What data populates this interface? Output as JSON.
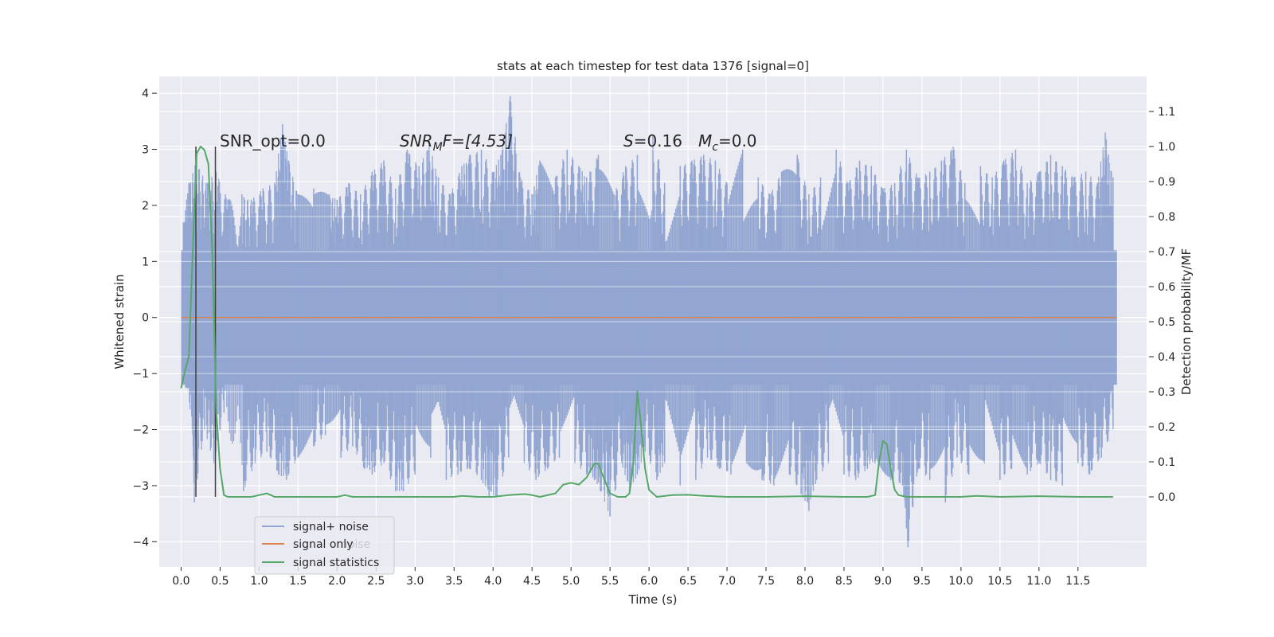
{
  "chart_data": {
    "type": "line",
    "title": "stats at each timestep for test data 1376 [signal=0]",
    "xlabel": "Time (s)",
    "ylabel": "Whitened strain",
    "y2label": "Detection probability/MF",
    "xlim": [
      -0.28,
      12.38
    ],
    "ylim": [
      -4.45,
      4.3
    ],
    "y2lim": [
      -0.2,
      1.2
    ],
    "x_ticks": [
      0.0,
      0.5,
      1.0,
      1.5,
      2.0,
      2.5,
      3.0,
      3.5,
      4.0,
      4.5,
      5.0,
      5.5,
      6.0,
      6.5,
      7.0,
      7.5,
      8.0,
      8.5,
      9.0,
      9.5,
      10.0,
      10.5,
      11.0,
      11.5
    ],
    "x_tick_labels": [
      "0.0",
      "0.5",
      "1.0",
      "1.5",
      "2.0",
      "2.5",
      "3.0",
      "3.5",
      "4.0",
      "4.5",
      "5.0",
      "5.5",
      "6.0",
      "6.5",
      "7.0",
      "7.5",
      "8.0",
      "8.5",
      "9.0",
      "9.5",
      "10.0",
      "10.5",
      "11.0",
      "11.5"
    ],
    "y_ticks": [
      -4,
      -3,
      -2,
      -1,
      0,
      1,
      2,
      3,
      4
    ],
    "y_tick_labels": [
      "−4",
      "−3",
      "−2",
      "−1",
      "0",
      "1",
      "2",
      "3",
      "4"
    ],
    "y2_ticks": [
      0.0,
      0.1,
      0.2,
      0.3,
      0.4,
      0.5,
      0.6,
      0.7,
      0.8,
      0.9,
      1.0,
      1.1
    ],
    "y2_tick_labels": [
      "0.0",
      "0.1",
      "0.2",
      "0.3",
      "0.4",
      "0.5",
      "0.6",
      "0.7",
      "0.8",
      "0.9",
      "1.0",
      "1.1"
    ],
    "grid": true,
    "legend_position": "lower-left",
    "noise": {
      "x_range": [
        0.0,
        12.0
      ],
      "envelope_upper": 1.2,
      "envelope_lower": -1.2,
      "spikes_up": [
        [
          0.03,
          1.7
        ],
        [
          0.1,
          2.4
        ],
        [
          0.2,
          2.8
        ],
        [
          0.32,
          2.4
        ],
        [
          0.45,
          2.6
        ],
        [
          0.6,
          2.1
        ],
        [
          0.78,
          2.2
        ],
        [
          0.9,
          2.1
        ],
        [
          1.05,
          2.3
        ],
        [
          1.2,
          2.4
        ],
        [
          1.3,
          3.45
        ],
        [
          1.38,
          2.8
        ],
        [
          1.5,
          2.2
        ],
        [
          1.7,
          2.3
        ],
        [
          1.9,
          2.2
        ],
        [
          2.0,
          2.1
        ],
        [
          2.15,
          2.4
        ],
        [
          2.3,
          2.2
        ],
        [
          2.45,
          2.6
        ],
        [
          2.6,
          2.8
        ],
        [
          2.75,
          2.3
        ],
        [
          2.9,
          3.0
        ],
        [
          3.05,
          2.7
        ],
        [
          3.18,
          3.1
        ],
        [
          3.3,
          2.5
        ],
        [
          3.45,
          2.2
        ],
        [
          3.6,
          2.7
        ],
        [
          3.7,
          2.9
        ],
        [
          3.85,
          3.0
        ],
        [
          4.0,
          2.6
        ],
        [
          4.1,
          2.9
        ],
        [
          4.22,
          3.95
        ],
        [
          4.35,
          2.5
        ],
        [
          4.5,
          2.2
        ],
        [
          4.6,
          2.8
        ],
        [
          4.8,
          2.5
        ],
        [
          4.95,
          3.0
        ],
        [
          5.1,
          2.7
        ],
        [
          5.2,
          2.5
        ],
        [
          5.35,
          2.9
        ],
        [
          5.55,
          2.2
        ],
        [
          5.7,
          2.7
        ],
        [
          5.85,
          2.9
        ],
        [
          6.05,
          3.25
        ],
        [
          6.2,
          2.4
        ],
        [
          6.4,
          2.7
        ],
        [
          6.55,
          2.8
        ],
        [
          6.7,
          2.9
        ],
        [
          6.85,
          2.8
        ],
        [
          7.0,
          2.4
        ],
        [
          7.2,
          3.0
        ],
        [
          7.4,
          2.5
        ],
        [
          7.55,
          2.2
        ],
        [
          7.7,
          2.6
        ],
        [
          7.9,
          2.9
        ],
        [
          8.05,
          2.2
        ],
        [
          8.2,
          2.5
        ],
        [
          8.4,
          3.0
        ],
        [
          8.55,
          2.4
        ],
        [
          8.7,
          2.8
        ],
        [
          8.85,
          2.7
        ],
        [
          9.0,
          2.3
        ],
        [
          9.15,
          2.4
        ],
        [
          9.3,
          3.0
        ],
        [
          9.45,
          2.5
        ],
        [
          9.6,
          2.6
        ],
        [
          9.75,
          2.8
        ],
        [
          9.9,
          3.05
        ],
        [
          10.05,
          2.4
        ],
        [
          10.25,
          2.7
        ],
        [
          10.4,
          2.5
        ],
        [
          10.55,
          2.8
        ],
        [
          10.7,
          3.0
        ],
        [
          10.85,
          2.4
        ],
        [
          11.0,
          2.6
        ],
        [
          11.15,
          2.9
        ],
        [
          11.3,
          2.7
        ],
        [
          11.45,
          2.5
        ],
        [
          11.6,
          2.6
        ],
        [
          11.75,
          2.4
        ],
        [
          11.85,
          3.3
        ],
        [
          11.95,
          2.5
        ]
      ],
      "spikes_down": [
        [
          0.05,
          -0.9
        ],
        [
          0.15,
          -2.1
        ],
        [
          0.17,
          -3.3
        ],
        [
          0.3,
          -2.0
        ],
        [
          0.42,
          -2.6
        ],
        [
          0.55,
          -1.7
        ],
        [
          0.8,
          -3.1
        ],
        [
          0.95,
          -2.6
        ],
        [
          1.1,
          -2.4
        ],
        [
          1.25,
          -2.8
        ],
        [
          1.35,
          -2.9
        ],
        [
          1.5,
          -2.5
        ],
        [
          1.7,
          -2.3
        ],
        [
          1.85,
          -2.1
        ],
        [
          2.05,
          -2.5
        ],
        [
          2.2,
          -2.3
        ],
        [
          2.35,
          -2.7
        ],
        [
          2.45,
          -2.8
        ],
        [
          2.6,
          -2.6
        ],
        [
          2.75,
          -3.1
        ],
        [
          2.85,
          -3.1
        ],
        [
          3.0,
          -2.8
        ],
        [
          3.2,
          -2.5
        ],
        [
          3.4,
          -2.9
        ],
        [
          3.55,
          -2.8
        ],
        [
          3.7,
          -2.7
        ],
        [
          3.85,
          -2.9
        ],
        [
          3.95,
          -3.2
        ],
        [
          4.05,
          -3.2
        ],
        [
          4.2,
          -2.5
        ],
        [
          4.4,
          -2.6
        ],
        [
          4.55,
          -2.9
        ],
        [
          4.7,
          -2.7
        ],
        [
          4.85,
          -2.5
        ],
        [
          5.05,
          -2.6
        ],
        [
          5.2,
          -2.8
        ],
        [
          5.3,
          -2.9
        ],
        [
          5.38,
          -3.1
        ],
        [
          5.5,
          -3.55
        ],
        [
          5.65,
          -2.6
        ],
        [
          5.75,
          -3.15
        ],
        [
          5.85,
          -2.8
        ],
        [
          5.95,
          -2.4
        ],
        [
          6.1,
          -2.9
        ],
        [
          6.2,
          -2.6
        ],
        [
          6.4,
          -3.0
        ],
        [
          6.6,
          -2.9
        ],
        [
          6.75,
          -2.5
        ],
        [
          6.9,
          -2.7
        ],
        [
          7.05,
          -2.8
        ],
        [
          7.25,
          -2.6
        ],
        [
          7.45,
          -2.9
        ],
        [
          7.6,
          -3.0
        ],
        [
          7.8,
          -2.8
        ],
        [
          7.95,
          -3.15
        ],
        [
          8.05,
          -3.45
        ],
        [
          8.15,
          -2.9
        ],
        [
          8.3,
          -2.6
        ],
        [
          8.5,
          -2.8
        ],
        [
          8.65,
          -2.9
        ],
        [
          8.8,
          -2.7
        ],
        [
          8.9,
          -2.6
        ],
        [
          9.1,
          -2.9
        ],
        [
          9.25,
          -3.0
        ],
        [
          9.32,
          -4.1
        ],
        [
          9.45,
          -2.7
        ],
        [
          9.6,
          -2.9
        ],
        [
          9.8,
          -3.3
        ],
        [
          9.95,
          -2.5
        ],
        [
          10.1,
          -2.8
        ],
        [
          10.3,
          -2.6
        ],
        [
          10.5,
          -2.9
        ],
        [
          10.65,
          -2.7
        ],
        [
          10.85,
          -2.8
        ],
        [
          11.0,
          -2.6
        ],
        [
          11.15,
          -2.9
        ],
        [
          11.3,
          -3.0
        ],
        [
          11.5,
          -2.6
        ],
        [
          11.65,
          -2.8
        ],
        [
          11.8,
          -2.5
        ],
        [
          11.95,
          -2.0
        ]
      ]
    },
    "signal_only": {
      "x": [
        0.0,
        12.0
      ],
      "y": [
        0.0,
        0.0
      ]
    },
    "statistics": {
      "x": [
        0.0,
        0.05,
        0.1,
        0.15,
        0.2,
        0.25,
        0.3,
        0.35,
        0.4,
        0.45,
        0.5,
        0.55,
        0.6,
        0.65,
        0.7,
        0.8,
        0.9,
        1.0,
        1.1,
        1.15,
        1.2,
        1.25,
        1.3,
        1.5,
        2.0,
        2.1,
        2.2,
        2.3,
        2.5,
        3.0,
        3.5,
        3.6,
        3.8,
        4.0,
        4.2,
        4.4,
        4.5,
        4.6,
        4.8,
        4.9,
        5.0,
        5.1,
        5.2,
        5.3,
        5.35,
        5.4,
        5.5,
        5.6,
        5.7,
        5.75,
        5.8,
        5.85,
        5.9,
        5.95,
        6.0,
        6.1,
        6.3,
        6.5,
        6.7,
        7.0,
        7.5,
        8.0,
        8.5,
        8.8,
        8.9,
        8.95,
        9.0,
        9.05,
        9.1,
        9.15,
        9.2,
        9.3,
        9.5,
        10.0,
        10.2,
        10.5,
        11.0,
        11.5,
        11.95
      ],
      "y": [
        0.31,
        0.36,
        0.4,
        0.7,
        0.98,
        1.0,
        0.99,
        0.95,
        0.7,
        0.25,
        0.08,
        0.005,
        0.0,
        0.0,
        0.0,
        0.0,
        0.0,
        0.005,
        0.01,
        0.005,
        0.0,
        0.0,
        0.0,
        0.0,
        0.0,
        0.005,
        0.0,
        0.0,
        0.0,
        0.0,
        0.0,
        0.003,
        0.0,
        0.0,
        0.005,
        0.008,
        0.005,
        0.0,
        0.01,
        0.035,
        0.04,
        0.035,
        0.055,
        0.095,
        0.095,
        0.065,
        0.01,
        0.0,
        0.0,
        0.01,
        0.1,
        0.3,
        0.2,
        0.08,
        0.02,
        0.0,
        0.005,
        0.006,
        0.003,
        0.0,
        0.0,
        0.002,
        0.0,
        0.0,
        0.005,
        0.1,
        0.16,
        0.15,
        0.08,
        0.02,
        0.005,
        0.0,
        0.0,
        0.0,
        0.003,
        0.0,
        0.002,
        0.0,
        0.0
      ]
    },
    "vlines": [
      0.19,
      0.44
    ],
    "annotations": {
      "snr_opt": "SNR_opt=0.0",
      "snr_mf_base": "SNR",
      "snr_mf_sub": "M",
      "snr_mf_rest": "F=[4.53]",
      "s_label": "S",
      "s_value": "=0.16",
      "mc_base": "M",
      "mc_sub": "c",
      "mc_value": "=0.0"
    },
    "series": [
      {
        "name": "signal+ noise",
        "color": "#92a6d1"
      },
      {
        "name": "signal only",
        "color": "#dd8452"
      },
      {
        "name": "signal statistics",
        "color": "#55a868"
      }
    ],
    "legend_ghost_text": "noise",
    "colors": {
      "background": "#eaeaf2",
      "grid": "#ffffff",
      "vline": "#404040"
    }
  }
}
